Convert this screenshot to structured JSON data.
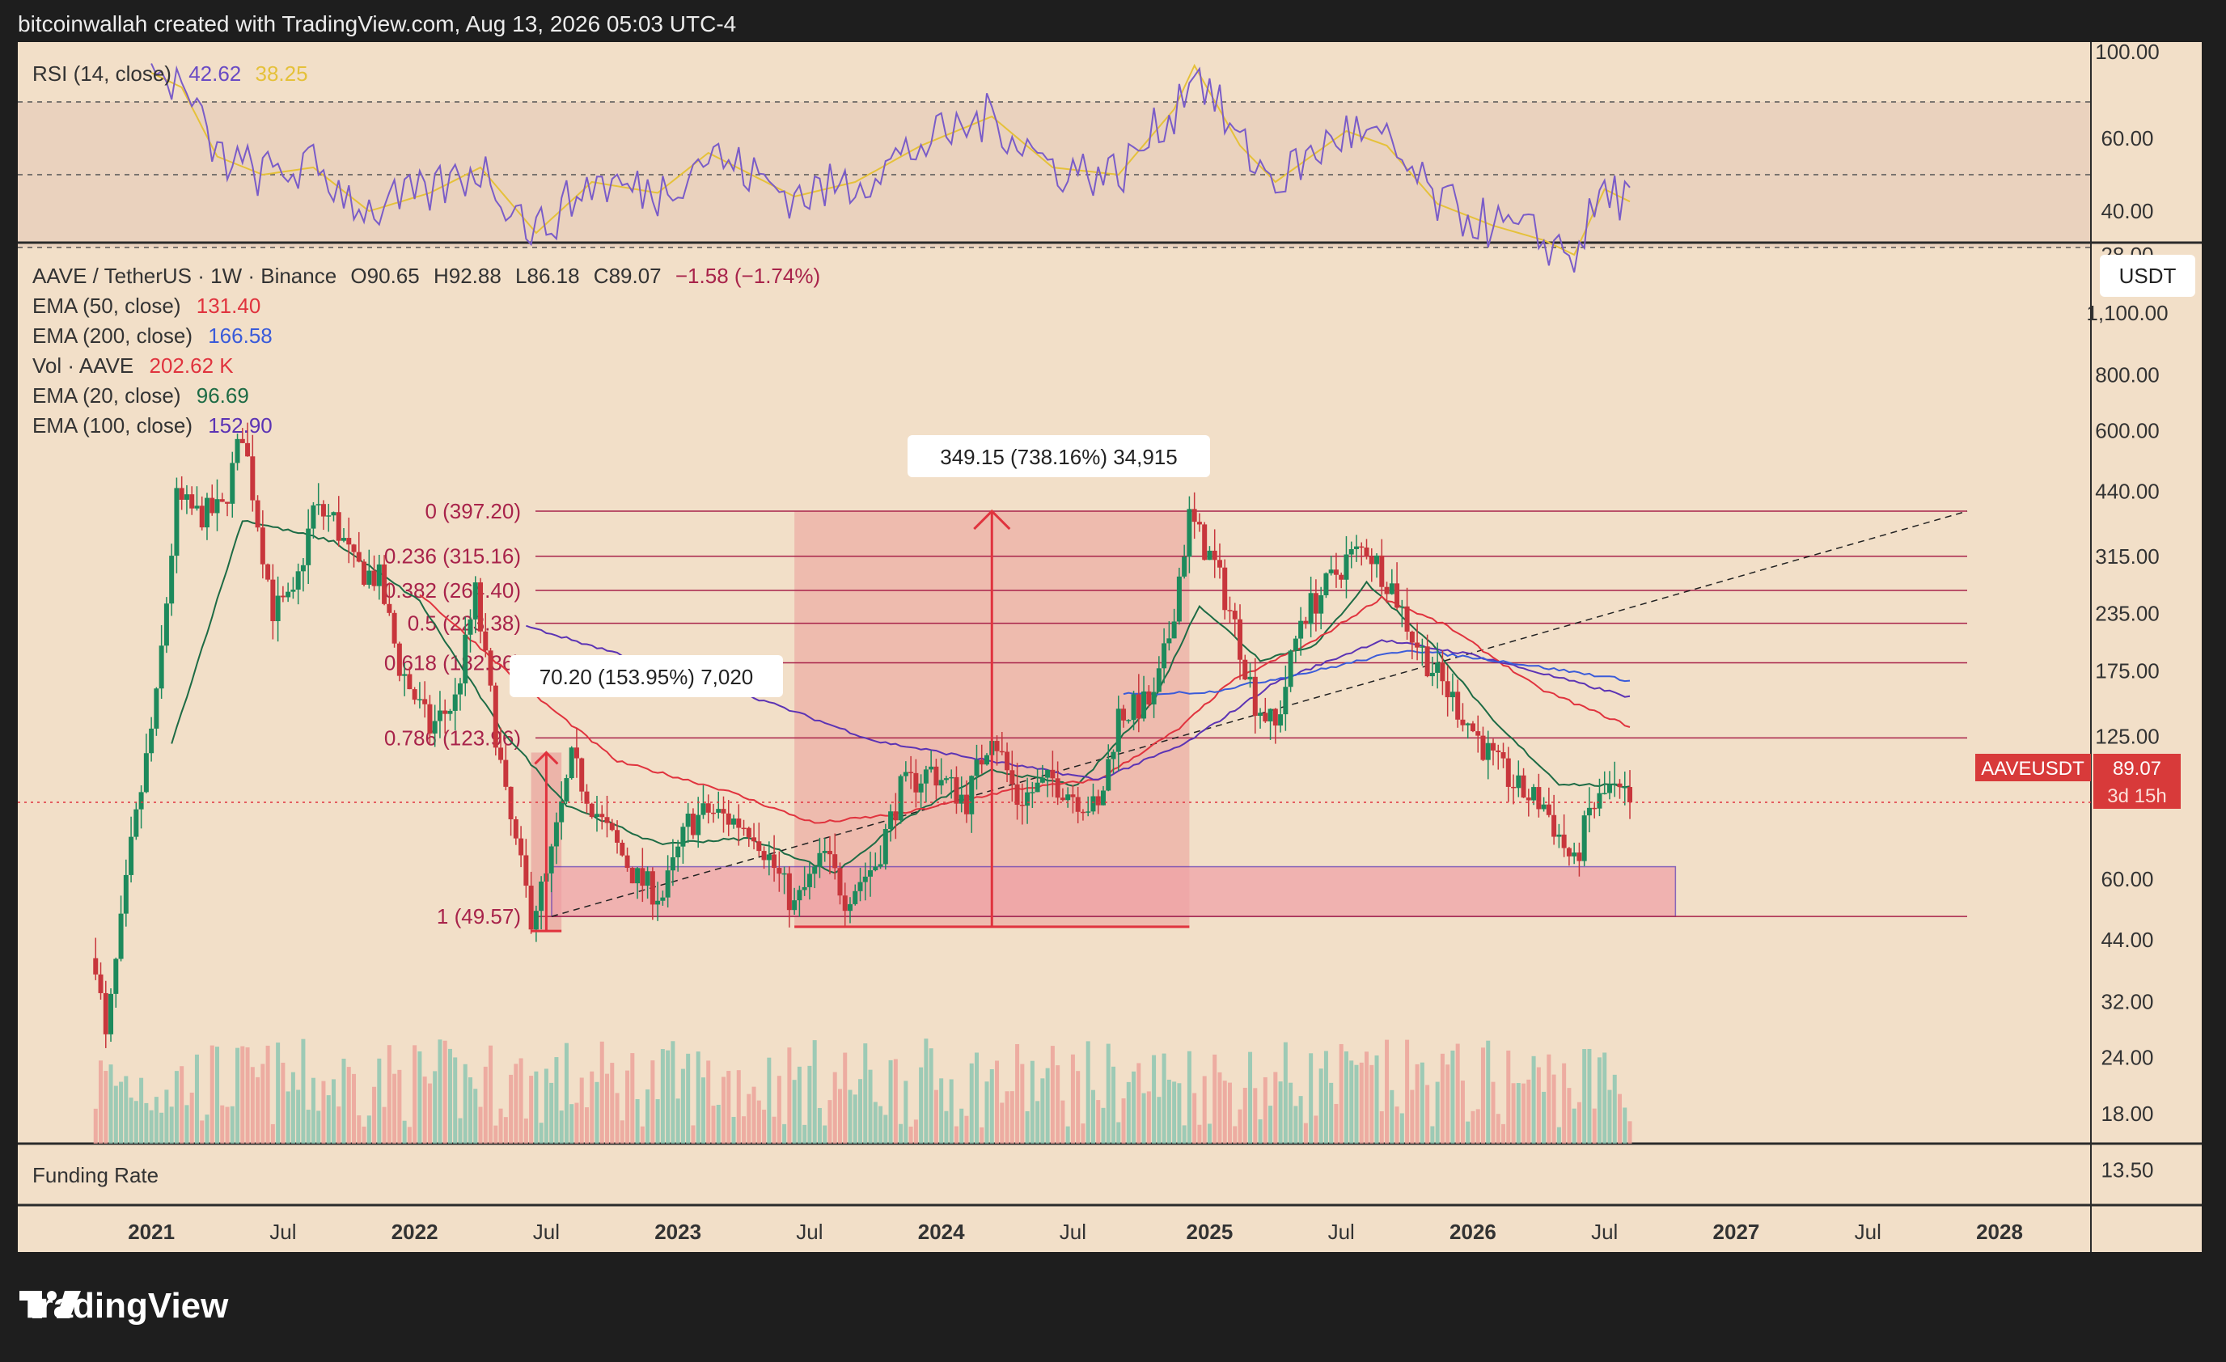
{
  "header": {
    "text": "bitcoinwallah created with TradingView.com, Aug 13, 2026 05:03 UTC-4"
  },
  "footer": {
    "brand": "TradingView"
  },
  "rsi_pane": {
    "legend_title": "RSI (14, close)",
    "rsi_value": "42.62",
    "ma_value": "38.25",
    "axis_ticks": [
      "100.00",
      "60.00",
      "40.00",
      "28.00"
    ]
  },
  "main_pane": {
    "symbol_line": {
      "symbol": "AAVE / TetherUS · 1W · Binance",
      "open": "O90.65",
      "high": "H92.88",
      "low": "L86.18",
      "close": "C89.07",
      "change": "−1.58 (−1.74%)"
    },
    "indicators": [
      {
        "name": "EMA (50, close)",
        "value": "131.40",
        "color": "#e0333e"
      },
      {
        "name": "EMA (200, close)",
        "value": "166.58",
        "color": "#3a5bd9"
      },
      {
        "name": "Vol · AAVE",
        "value": "202.62 K",
        "color": "#e0333e"
      },
      {
        "name": "EMA (20, close)",
        "value": "96.69",
        "color": "#1d6b45"
      },
      {
        "name": "EMA (100, close)",
        "value": "152.90",
        "color": "#5b33b4"
      }
    ],
    "currency_button": "USDT",
    "price_axis": [
      "1,100.00",
      "800.00",
      "600.00",
      "440.00",
      "315.00",
      "235.00",
      "175.00",
      "125.00",
      "89.07",
      "60.00",
      "44.00",
      "32.00",
      "24.00",
      "18.00",
      "13.50"
    ],
    "price_badge": {
      "symbol": "AAVEUSDT",
      "price": "89.07",
      "countdown": "3d 15h"
    },
    "fib_labels": [
      "0 (397.20)",
      "0.236 (315.16)",
      "0.382 (264.40)",
      "0.5 (223.38)",
      "0.618 (182.36)",
      "0.786 (123.96)",
      "1 (49.57)"
    ],
    "measure_small": "70.20 (153.95%) 7,020",
    "measure_large": "349.15 (738.16%) 34,915"
  },
  "funding_pane": {
    "label": "Funding Rate"
  },
  "time_axis": [
    "2021",
    "Jul",
    "2022",
    "Jul",
    "2023",
    "Jul",
    "2024",
    "Jul",
    "2025",
    "Jul",
    "2026",
    "Jul",
    "2027",
    "Jul",
    "2028"
  ],
  "colors": {
    "up": "#1d8a5c",
    "down": "#c8363c",
    "fib": "#a8234a",
    "pane_bg": "#f2dfc8",
    "frame": "#1e1e1e"
  },
  "chart_data": {
    "type": "candlestick",
    "title": "AAVE / TetherUS · 1W · Binance",
    "y_scale": "log",
    "ylim": [
      11,
      1400
    ],
    "x_range": [
      "2020-10-12",
      "2028-02-01"
    ],
    "fib_retracement": {
      "0": 397.2,
      "0.236": 315.16,
      "0.382": 264.4,
      "0.5": 223.38,
      "0.618": 182.36,
      "0.786": 123.96,
      "1": 49.57
    },
    "path": [
      [
        "2020-10-19",
        40
      ],
      [
        "2020-11-02",
        26
      ],
      [
        "2020-12-07",
        70
      ],
      [
        "2021-01-11",
        150
      ],
      [
        "2021-02-08",
        420
      ],
      [
        "2021-03-08",
        390
      ],
      [
        "2021-04-12",
        400
      ],
      [
        "2021-05-10",
        600
      ],
      [
        "2021-06-21",
        240
      ],
      [
        "2021-07-19",
        250
      ],
      [
        "2021-08-16",
        400
      ],
      [
        "2021-09-13",
        380
      ],
      [
        "2021-10-11",
        300
      ],
      [
        "2021-11-15",
        280
      ],
      [
        "2021-12-13",
        180
      ],
      [
        "2022-01-24",
        130
      ],
      [
        "2022-02-28",
        150
      ],
      [
        "2022-03-28",
        260
      ],
      [
        "2022-05-09",
        90
      ],
      [
        "2022-06-13",
        50
      ],
      [
        "2022-07-04",
        60
      ],
      [
        "2022-08-08",
        110
      ],
      [
        "2022-09-19",
        80
      ],
      [
        "2022-11-07",
        60
      ],
      [
        "2022-12-12",
        55
      ],
      [
        "2023-01-16",
        80
      ],
      [
        "2023-02-13",
        85
      ],
      [
        "2023-04-17",
        78
      ],
      [
        "2023-06-12",
        52
      ],
      [
        "2023-07-24",
        68
      ],
      [
        "2023-08-21",
        55
      ],
      [
        "2023-10-02",
        65
      ],
      [
        "2023-11-06",
        95
      ],
      [
        "2023-12-18",
        105
      ],
      [
        "2024-02-05",
        90
      ],
      [
        "2024-03-11",
        130
      ],
      [
        "2024-04-15",
        90
      ],
      [
        "2024-06-03",
        100
      ],
      [
        "2024-08-05",
        85
      ],
      [
        "2024-09-02",
        140
      ],
      [
        "2024-10-21",
        150
      ],
      [
        "2024-11-11",
        210
      ],
      [
        "2024-12-09",
        385
      ],
      [
        "2025-01-13",
        300
      ],
      [
        "2025-02-10",
        220
      ],
      [
        "2025-03-10",
        150
      ],
      [
        "2025-04-07",
        130
      ],
      [
        "2025-05-12",
        230
      ],
      [
        "2025-06-09",
        260
      ],
      [
        "2025-07-14",
        310
      ],
      [
        "2025-08-11",
        330
      ],
      [
        "2025-09-15",
        270
      ],
      [
        "2025-10-13",
        210
      ],
      [
        "2025-11-17",
        170
      ],
      [
        "2025-12-22",
        140
      ],
      [
        "2026-02-02",
        110
      ],
      [
        "2026-03-09",
        95
      ],
      [
        "2026-04-13",
        88
      ],
      [
        "2026-05-25",
        64
      ],
      [
        "2026-06-15",
        85
      ],
      [
        "2026-07-13",
        95
      ],
      [
        "2026-08-10",
        89.07
      ]
    ],
    "series": [
      {
        "name": "EMA (20, close)",
        "color": "#1d6b45",
        "points": [
          [
            "2021-02-01",
            120
          ],
          [
            "2021-05-10",
            380
          ],
          [
            "2021-09-13",
            340
          ],
          [
            "2022-01-10",
            250
          ],
          [
            "2022-05-02",
            130
          ],
          [
            "2022-08-01",
            88
          ],
          [
            "2022-12-05",
            72
          ],
          [
            "2023-04-10",
            74
          ],
          [
            "2023-08-07",
            62
          ],
          [
            "2023-11-13",
            82
          ],
          [
            "2024-03-11",
            105
          ],
          [
            "2024-07-08",
            97
          ],
          [
            "2024-10-21",
            150
          ],
          [
            "2024-12-23",
            245
          ],
          [
            "2025-03-17",
            185
          ],
          [
            "2025-06-02",
            200
          ],
          [
            "2025-08-11",
            275
          ],
          [
            "2025-11-10",
            200
          ],
          [
            "2026-02-02",
            135
          ],
          [
            "2026-05-04",
            98
          ],
          [
            "2026-08-10",
            96.69
          ]
        ]
      },
      {
        "name": "EMA (50, close)",
        "color": "#e0333e",
        "points": [
          [
            "2022-01-10",
            260
          ],
          [
            "2022-06-06",
            160
          ],
          [
            "2022-10-10",
            110
          ],
          [
            "2023-03-06",
            95
          ],
          [
            "2023-07-10",
            80
          ],
          [
            "2023-11-06",
            84
          ],
          [
            "2024-04-08",
            95
          ],
          [
            "2024-08-05",
            100
          ],
          [
            "2024-11-25",
            130
          ],
          [
            "2025-02-03",
            165
          ],
          [
            "2025-06-02",
            205
          ],
          [
            "2025-09-01",
            255
          ],
          [
            "2025-12-01",
            220
          ],
          [
            "2026-04-06",
            160
          ],
          [
            "2026-08-10",
            131.4
          ]
        ]
      },
      {
        "name": "EMA (100, close)",
        "color": "#5b33b4",
        "points": [
          [
            "2022-06-06",
            220
          ],
          [
            "2022-12-05",
            180
          ],
          [
            "2023-05-01",
            150
          ],
          [
            "2023-10-02",
            122
          ],
          [
            "2024-03-11",
            110
          ],
          [
            "2024-08-05",
            100
          ],
          [
            "2024-12-02",
            120
          ],
          [
            "2025-04-07",
            165
          ],
          [
            "2025-09-01",
            205
          ],
          [
            "2026-01-05",
            190
          ],
          [
            "2026-08-10",
            152.9
          ]
        ]
      },
      {
        "name": "EMA (200, close)",
        "color": "#3a5bd9",
        "points": [
          [
            "2024-09-09",
            155
          ],
          [
            "2025-01-06",
            157
          ],
          [
            "2025-06-02",
            175
          ],
          [
            "2025-10-06",
            195
          ],
          [
            "2026-02-02",
            185
          ],
          [
            "2026-08-10",
            166.58
          ]
        ]
      }
    ],
    "rsi": {
      "ylim": [
        20,
        100
      ],
      "levels": [
        70,
        50,
        30
      ],
      "last": 42.62,
      "ma_last": 38.25,
      "path": [
        [
          "2021-01-04",
          78
        ],
        [
          "2021-02-15",
          74
        ],
        [
          "2021-04-05",
          55
        ],
        [
          "2021-06-07",
          50
        ],
        [
          "2021-08-16",
          52
        ],
        [
          "2021-11-01",
          40
        ],
        [
          "2022-01-24",
          45
        ],
        [
          "2022-04-04",
          52
        ],
        [
          "2022-06-20",
          34
        ],
        [
          "2022-09-05",
          48
        ],
        [
          "2022-12-05",
          45
        ],
        [
          "2023-02-13",
          56
        ],
        [
          "2023-06-12",
          44
        ],
        [
          "2023-09-04",
          48
        ],
        [
          "2023-12-04",
          58
        ],
        [
          "2024-03-11",
          66
        ],
        [
          "2024-06-03",
          52
        ],
        [
          "2024-09-02",
          50
        ],
        [
          "2024-11-18",
          68
        ],
        [
          "2024-12-16",
          80
        ],
        [
          "2025-02-17",
          58
        ],
        [
          "2025-04-07",
          48
        ],
        [
          "2025-07-14",
          62
        ],
        [
          "2025-09-08",
          58
        ],
        [
          "2025-11-17",
          42
        ],
        [
          "2026-02-02",
          36
        ],
        [
          "2026-04-13",
          32
        ],
        [
          "2026-05-25",
          28
        ],
        [
          "2026-07-06",
          46
        ],
        [
          "2026-08-10",
          42.62
        ]
      ]
    }
  }
}
